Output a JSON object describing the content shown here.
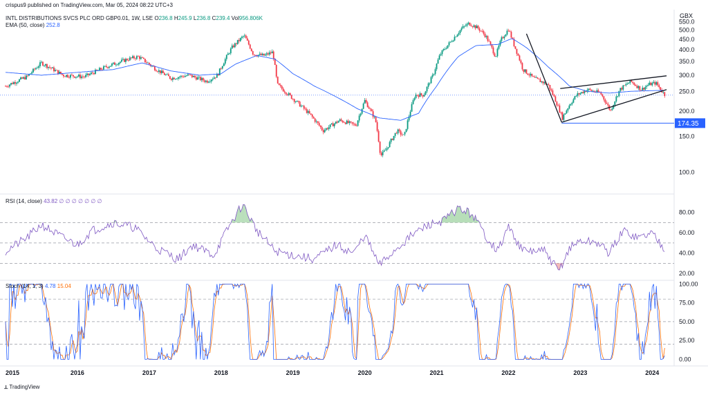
{
  "header": {
    "published": "crispus9 published on TradingView.com, Mar 05, 2024 08:22 UTC+3",
    "symbol": "INTL DISTRIBUTIONS SVCS PLC ORD GBP0.01, 1W, LSE",
    "ohlc": {
      "o_label": "O",
      "o": "236.8",
      "h_label": "H",
      "h": "245.9",
      "l_label": "L",
      "l": "236.8",
      "c_label": "C",
      "c": "239.4",
      "vol_label": "Vol",
      "vol": "956.806K"
    },
    "ema_label": "EMA (50, close)",
    "ema_value": "252.8",
    "rsi_label": "RSI (14, close)",
    "rsi_value": "43.82",
    "rsi_extra": "∅ ∅ ∅ ∅ ∅ ∅ ∅",
    "stoch_label": "Stoch (14, 1, 3)",
    "stoch_k": "4.78",
    "stoch_d": "15.04",
    "footer": "TradingView"
  },
  "colors": {
    "up": "#089981",
    "down": "#f23645",
    "ema": "#2962ff",
    "rsi": "#7e57c2",
    "stoch_k": "#2962ff",
    "stoch_d": "#ff6d00",
    "price_tag": "#2962ff"
  },
  "chart_data": [
    {
      "type": "candlestick",
      "currency_label": "GBX",
      "y_ticks": [
        "550.0",
        "500.0",
        "450.0",
        "400.0",
        "350.0",
        "300.0",
        "250.0",
        "200.0",
        "150.0",
        "100.0"
      ],
      "ylim": [
        80,
        565
      ],
      "x_ticks": [
        "2015",
        "2016",
        "2017",
        "2018",
        "2019",
        "2020",
        "2021",
        "2022",
        "2023",
        "2024"
      ],
      "price_tag": "174.35",
      "last_close": 239.4,
      "price_anchors": [
        [
          2015.0,
          265
        ],
        [
          2015.3,
          295
        ],
        [
          2015.5,
          345
        ],
        [
          2015.8,
          300
        ],
        [
          2016.1,
          295
        ],
        [
          2016.4,
          330
        ],
        [
          2016.7,
          360
        ],
        [
          2016.85,
          370
        ],
        [
          2017.1,
          320
        ],
        [
          2017.3,
          290
        ],
        [
          2017.55,
          300
        ],
        [
          2017.8,
          280
        ],
        [
          2017.95,
          300
        ],
        [
          2018.15,
          410
        ],
        [
          2018.32,
          470
        ],
        [
          2018.45,
          380
        ],
        [
          2018.6,
          375
        ],
        [
          2018.72,
          390
        ],
        [
          2018.78,
          270
        ],
        [
          2019.0,
          230
        ],
        [
          2019.25,
          190
        ],
        [
          2019.42,
          160
        ],
        [
          2019.65,
          180
        ],
        [
          2019.88,
          170
        ],
        [
          2020.0,
          225
        ],
        [
          2020.15,
          180
        ],
        [
          2020.22,
          120
        ],
        [
          2020.3,
          130
        ],
        [
          2020.45,
          160
        ],
        [
          2020.55,
          150
        ],
        [
          2020.7,
          240
        ],
        [
          2020.82,
          240
        ],
        [
          2020.95,
          300
        ],
        [
          2021.05,
          380
        ],
        [
          2021.2,
          440
        ],
        [
          2021.35,
          510
        ],
        [
          2021.45,
          540
        ],
        [
          2021.58,
          510
        ],
        [
          2021.68,
          470
        ],
        [
          2021.82,
          370
        ],
        [
          2021.9,
          450
        ],
        [
          2022.0,
          505
        ],
        [
          2022.08,
          420
        ],
        [
          2022.2,
          320
        ],
        [
          2022.35,
          290
        ],
        [
          2022.55,
          270
        ],
        [
          2022.75,
          185
        ],
        [
          2022.85,
          215
        ],
        [
          2022.95,
          240
        ],
        [
          2023.1,
          255
        ],
        [
          2023.28,
          245
        ],
        [
          2023.42,
          200
        ],
        [
          2023.55,
          255
        ],
        [
          2023.7,
          280
        ],
        [
          2023.85,
          255
        ],
        [
          2023.95,
          270
        ],
        [
          2024.05,
          275
        ],
        [
          2024.12,
          255
        ],
        [
          2024.18,
          239
        ]
      ],
      "ema_anchors": [
        [
          2015.0,
          310
        ],
        [
          2015.5,
          300
        ],
        [
          2016.0,
          310
        ],
        [
          2016.5,
          320
        ],
        [
          2016.9,
          345
        ],
        [
          2017.3,
          315
        ],
        [
          2017.7,
          300
        ],
        [
          2018.0,
          305
        ],
        [
          2018.2,
          340
        ],
        [
          2018.5,
          375
        ],
        [
          2018.75,
          360
        ],
        [
          2019.0,
          305
        ],
        [
          2019.3,
          265
        ],
        [
          2019.6,
          235
        ],
        [
          2019.9,
          205
        ],
        [
          2020.2,
          185
        ],
        [
          2020.5,
          180
        ],
        [
          2020.75,
          195
        ],
        [
          2021.0,
          265
        ],
        [
          2021.3,
          370
        ],
        [
          2021.55,
          420
        ],
        [
          2021.85,
          425
        ],
        [
          2022.05,
          455
        ],
        [
          2022.25,
          410
        ],
        [
          2022.55,
          330
        ],
        [
          2022.85,
          265
        ],
        [
          2023.1,
          250
        ],
        [
          2023.4,
          245
        ],
        [
          2023.7,
          250
        ],
        [
          2024.0,
          252
        ],
        [
          2024.18,
          252.8
        ]
      ],
      "trendlines": [
        {
          "from": [
            2022.25,
            480
          ],
          "to": [
            2022.74,
            176
          ]
        },
        {
          "from": [
            2022.72,
            258
          ],
          "to": [
            2024.2,
            298
          ]
        },
        {
          "from": [
            2022.74,
            176
          ],
          "to": [
            2024.2,
            255
          ]
        }
      ],
      "horizontal_lines": [
        {
          "y": 174.35,
          "from": 2022.74
        },
        {
          "y": 239.4,
          "style": "dotted"
        }
      ]
    },
    {
      "type": "line",
      "name": "RSI (14, close)",
      "y_ticks": [
        "80.00",
        "60.00",
        "40.00",
        "20.00"
      ],
      "ylim": [
        14,
        96
      ],
      "bands": [
        70,
        50,
        30
      ],
      "anchors": [
        [
          2015.0,
          42
        ],
        [
          2015.3,
          55
        ],
        [
          2015.5,
          68
        ],
        [
          2015.8,
          55
        ],
        [
          2016.0,
          48
        ],
        [
          2016.2,
          62
        ],
        [
          2016.5,
          70
        ],
        [
          2016.8,
          65
        ],
        [
          2017.1,
          45
        ],
        [
          2017.4,
          34
        ],
        [
          2017.6,
          48
        ],
        [
          2017.9,
          38
        ],
        [
          2018.1,
          65
        ],
        [
          2018.3,
          88
        ],
        [
          2018.5,
          62
        ],
        [
          2018.75,
          42
        ],
        [
          2019.0,
          38
        ],
        [
          2019.3,
          34
        ],
        [
          2019.6,
          48
        ],
        [
          2019.85,
          40
        ],
        [
          2020.0,
          58
        ],
        [
          2020.2,
          28
        ],
        [
          2020.45,
          45
        ],
        [
          2020.7,
          60
        ],
        [
          2020.9,
          68
        ],
        [
          2021.1,
          72
        ],
        [
          2021.3,
          84
        ],
        [
          2021.5,
          78
        ],
        [
          2021.7,
          55
        ],
        [
          2021.85,
          42
        ],
        [
          2022.0,
          66
        ],
        [
          2022.2,
          42
        ],
        [
          2022.5,
          42
        ],
        [
          2022.7,
          22
        ],
        [
          2022.85,
          45
        ],
        [
          2023.0,
          52
        ],
        [
          2023.25,
          50
        ],
        [
          2023.4,
          40
        ],
        [
          2023.6,
          62
        ],
        [
          2023.8,
          55
        ],
        [
          2024.0,
          60
        ],
        [
          2024.18,
          43.82
        ]
      ]
    },
    {
      "type": "line",
      "name": "Stoch (14, 1, 3)",
      "y_ticks": [
        "100.00",
        "75.00",
        "50.00",
        "25.00",
        "0.00"
      ],
      "ylim": [
        -6,
        104
      ],
      "bands": [
        80,
        50,
        20
      ],
      "last_k": 4.78,
      "last_d": 15.04
    }
  ]
}
